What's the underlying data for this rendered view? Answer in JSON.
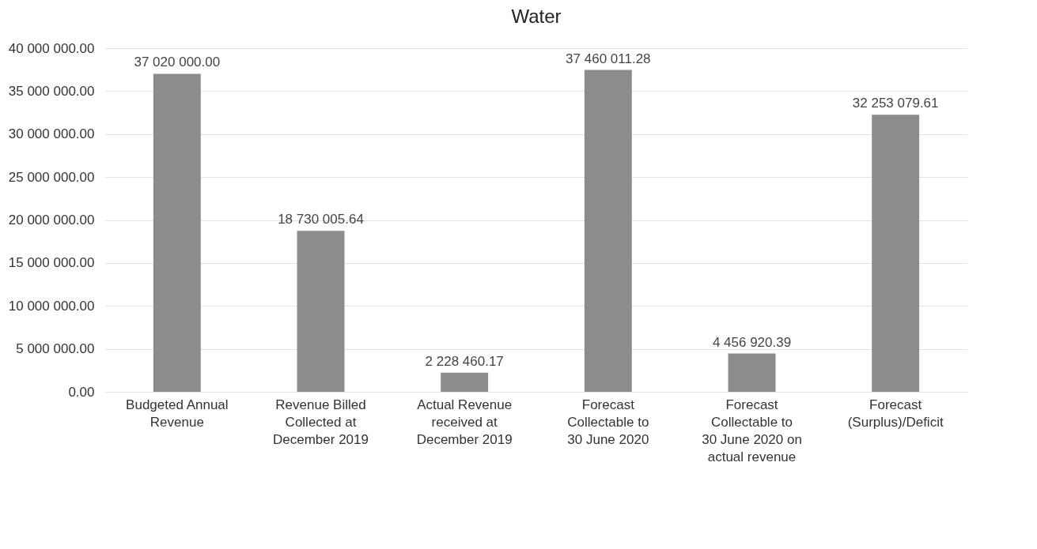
{
  "chart_data": {
    "type": "bar",
    "title": "Water",
    "categories": [
      "Budgeted Annual Revenue",
      "Revenue Billed Collected at December 2019",
      "Actual Revenue received at December 2019",
      "Forecast Collectable to 30 June 2020",
      "Forecast Collectable to 30 June 2020 on actual revenue",
      "Forecast (Surplus)/Deficit"
    ],
    "values": [
      37020000.0,
      18730005.64,
      2228460.17,
      37460011.28,
      4456920.39,
      32253079.61
    ],
    "value_labels": [
      "37 020 000.00",
      "18 730 005.64",
      "2 228 460.17",
      "37 460 011.28",
      "4 456 920.39",
      "32 253 079.61"
    ],
    "color": "#8c8c8c",
    "ylim": [
      0,
      40000000
    ],
    "yticks": [
      {
        "value": 0,
        "label": "0.00"
      },
      {
        "value": 5000000,
        "label": "5 000 000.00"
      },
      {
        "value": 10000000,
        "label": "10 000 000.00"
      },
      {
        "value": 15000000,
        "label": "15 000 000.00"
      },
      {
        "value": 20000000,
        "label": "20 000 000.00"
      },
      {
        "value": 25000000,
        "label": "25 000 000.00"
      },
      {
        "value": 30000000,
        "label": "30 000 000.00"
      },
      {
        "value": 35000000,
        "label": "35 000 000.00"
      },
      {
        "value": 40000000,
        "label": "40 000 000.00"
      }
    ],
    "grid": "y"
  }
}
